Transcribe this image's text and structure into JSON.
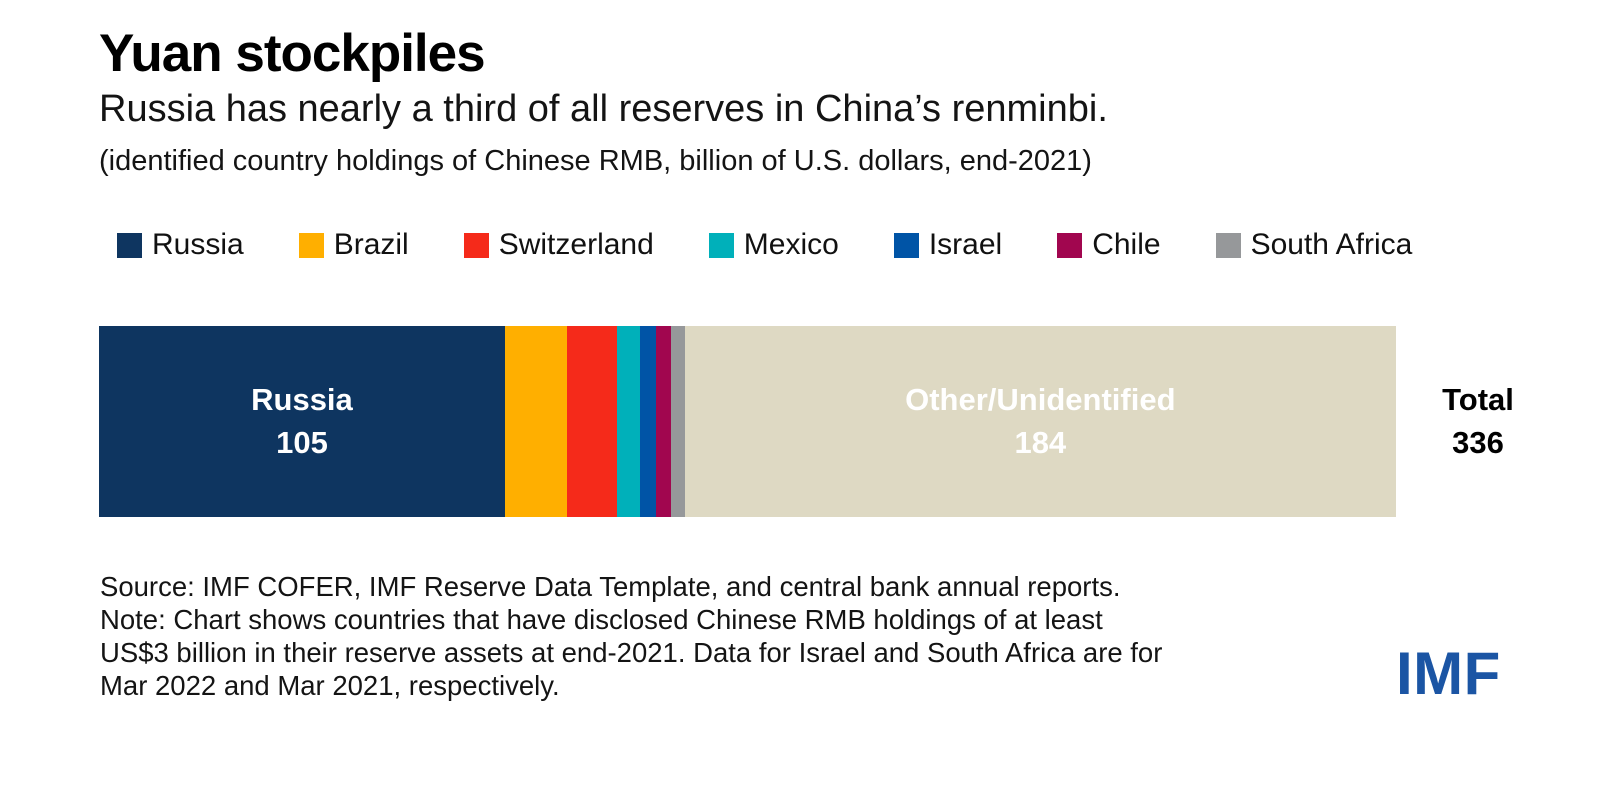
{
  "header": {
    "title": "Yuan stockpiles",
    "subtitle": "Russia has nearly a third of all reserves in China’s renminbi.",
    "units_note": "(identified country holdings of Chinese RMB, billion of U.S. dollars, end-2021)"
  },
  "chart_data": {
    "type": "bar",
    "orientation": "horizontal-stacked",
    "title": "Yuan stockpiles",
    "units": "billion of U.S. dollars, end-2021",
    "total": 336,
    "total_label": "Total",
    "axis": "none (single stacked bar, no gridlines)",
    "legend_position": "top",
    "segments": [
      {
        "id": "russia",
        "label": "Russia",
        "value": 105,
        "color": "#0e3560",
        "in_legend": true,
        "show_label": true,
        "label_color": "#ffffff"
      },
      {
        "id": "brazil",
        "label": "Brazil",
        "value": 16,
        "color": "#ffaf00",
        "in_legend": true,
        "show_label": false
      },
      {
        "id": "switzerland",
        "label": "Switzerland",
        "value": 13,
        "color": "#f52a1a",
        "in_legend": true,
        "show_label": false
      },
      {
        "id": "mexico",
        "label": "Mexico",
        "value": 6,
        "color": "#00b0ba",
        "in_legend": true,
        "show_label": false
      },
      {
        "id": "israel",
        "label": "Israel",
        "value": 4,
        "color": "#0054a6",
        "in_legend": true,
        "show_label": false
      },
      {
        "id": "chile",
        "label": "Chile",
        "value": 4,
        "color": "#a1064f",
        "in_legend": true,
        "show_label": false
      },
      {
        "id": "south-africa",
        "label": "South Africa",
        "value": 3.5,
        "color": "#96989a",
        "in_legend": true,
        "show_label": false
      },
      {
        "id": "other",
        "label": "Other/Unidentified",
        "value": 184,
        "color": "#ded9c3",
        "in_legend": false,
        "show_label": true,
        "label_color": "#ffffff"
      }
    ],
    "visible_data_labels": {
      "russia": "105",
      "other": "184",
      "total": "336"
    }
  },
  "footer": {
    "source_note": "Source: IMF COFER, IMF Reserve Data Template, and central bank annual reports.\nNote: Chart shows countries that have disclosed Chinese RMB holdings of at least\nUS$3 billion in their reserve assets at end-2021. Data for Israel and South Africa are for\nMar 2022 and Mar 2021, respectively.",
    "logo_text": "IMF",
    "logo_color": "#1b55a4"
  }
}
